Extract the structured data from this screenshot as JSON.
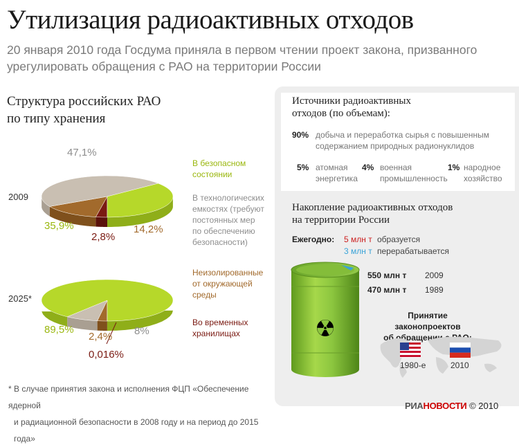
{
  "title": "Утилизация радиоактивных отходов",
  "subtitle": "20 января 2010 года Госдума приняла в первом чтении проект закона, призванного урегулировать обращения с РАО на территории России",
  "colors": {
    "safe": "#b6d82a",
    "technological": "#c9bfb2",
    "unisolated": "#a26a2c",
    "temporary": "#7a1a12",
    "barrel": "#8cc63f"
  },
  "structure": {
    "title_line1": "Структура российских РАО",
    "title_line2": "по типу хранения"
  },
  "chart_data": [
    {
      "type": "pie",
      "title": "2009",
      "categories": [
        "В безопасном состоянии",
        "В технологических емкостях (требуют постоянных мер по обеспечению безопасности)",
        "Неизолированные от окружающей среды",
        "Во временных хранилищах"
      ],
      "values": [
        35.9,
        47.1,
        14.2,
        2.8
      ],
      "labels": [
        "35,9%",
        "47,1%",
        "14,2%",
        "2,8%"
      ]
    },
    {
      "type": "pie",
      "title": "2025*",
      "categories": [
        "В безопасном состоянии",
        "В технологических емкостях (требуют постоянных мер по обеспечению безопасности)",
        "Неизолированные от окружающей среды",
        "Во временных хранилищах"
      ],
      "values": [
        89.5,
        8,
        2.4,
        0.016
      ],
      "labels": [
        "89,5%",
        "8%",
        "2,4%",
        "0,016%"
      ]
    }
  ],
  "legend": {
    "safe_l1": "В безопасном",
    "safe_l2": "состоянии",
    "tech_l1": "В технологических",
    "tech_l2": "емкостях (требуют",
    "tech_l3": "постоянных мер",
    "tech_l4": "по обеспечению",
    "tech_l5": "безопасности)",
    "unis_l1": "Неизолированные",
    "unis_l2": "от окружающей",
    "unis_l3": "среды",
    "temp_l1": "Во временных",
    "temp_l2": "хранилищах"
  },
  "sources": {
    "title_l1": "Источники радиоактивных",
    "title_l2": "отходов (по объемам):",
    "main_pct": "90%",
    "main_l1": "добыча и переработка сырья с повышенным",
    "main_l2": "содержанием природных радионуклидов",
    "items": [
      {
        "pct": "5%",
        "l1": "атомная",
        "l2": "энергетика"
      },
      {
        "pct": "4%",
        "l1": "военная",
        "l2": "промышленность"
      },
      {
        "pct": "1%",
        "l1": "народное",
        "l2": "хозяйство"
      }
    ]
  },
  "accumulation": {
    "title_l1": "Накопление радиоактивных отходов",
    "title_l2": "на территории России",
    "yearly_label": "Ежегодно:",
    "formed_amount": "5 млн т",
    "formed_text": "образуется",
    "processed_amount": "3 млн т",
    "processed_text": "перерабатывается",
    "amount_2009": "550 млн т",
    "year_2009": "2009",
    "amount_1989": "470 млн т",
    "year_1989": "1989",
    "laws_title_l1": "Принятие законопроектов",
    "laws_title_l2": "об обращении с РАО:",
    "usa_year": "1980-е",
    "russia_year": "2010"
  },
  "footnote_l1": "* В случае принятия закона и исполнения ФЦП «Обеспечение ядерной",
  "footnote_l2": "и радиационной безопасности в 2008 году и на период до 2015 года»",
  "logo": {
    "part1": "РИА",
    "part2": "НОВОСТИ"
  },
  "copyright": "© 2010"
}
